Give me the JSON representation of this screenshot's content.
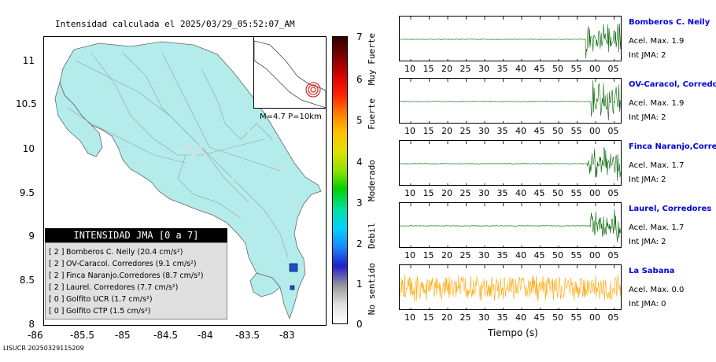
{
  "map": {
    "title": "Intensidad calculada el 2025/03/29_05:52:07_AM",
    "yticks": [
      "11",
      "10.5",
      "10",
      "9.5",
      "9",
      "8.5",
      "8"
    ],
    "xticks": [
      "-86",
      "-85.5",
      "-85",
      "-84.5",
      "-84",
      "-83.5",
      "-83"
    ],
    "inset_label": "M=4.7 P=10km",
    "land_color": "#b4ecec",
    "station_color": "#1a4fd0"
  },
  "legend": {
    "title": "INTENSIDAD JMA [0 a 7]",
    "rows": [
      {
        "level": "[ 2 ]",
        "text": "Bomberos C. Neily (20.4 cm/s²)"
      },
      {
        "level": "[ 2 ]",
        "text": "OV-Caracol. Corredores (9.1 cm/s²)"
      },
      {
        "level": "[ 2 ]",
        "text": "Finca Naranjo.Corredores (8.7 cm/s²)"
      },
      {
        "level": "[ 2 ]",
        "text": "Laurel. Corredores (7.7 cm/s²)"
      },
      {
        "level": "[ 0 ]",
        "text": "Golfito UCR (1.7 cm/s²)"
      },
      {
        "level": "[ 0 ]",
        "text": "Golfito CTP (1.5 cm/s²)"
      }
    ]
  },
  "colorbar": {
    "ticks": [
      "7",
      "6",
      "5",
      "4",
      "3",
      "2",
      "1",
      "0"
    ],
    "labels": [
      "Muy Fuerte",
      "Fuerte",
      "Moderado",
      "Debil",
      "No sentido"
    ]
  },
  "footer": "LISUCR 20250329115209",
  "traces": {
    "tick_labels": [
      "10",
      "15",
      "20",
      "25",
      "30",
      "35",
      "40",
      "45",
      "50",
      "55",
      "00",
      "05"
    ],
    "xlabel": "Tiempo (s)",
    "stations": [
      {
        "name": "Bomberos C. Neily",
        "acel": "Acel. Max. 1.9",
        "int": "Int JMA: 2",
        "color": "#006400"
      },
      {
        "name": "OV-Caracol, Corredores",
        "acel": "Acel. Max. 1.9",
        "int": "Int JMA: 2",
        "color": "#006400"
      },
      {
        "name": "Finca Naranjo,Corredores",
        "acel": "Acel. Max. 1.7",
        "int": "Int JMA: 2",
        "color": "#006400"
      },
      {
        "name": "Laurel, Corredores",
        "acel": "Acel. Max. 1.7",
        "int": "Int JMA: 2",
        "color": "#006400"
      },
      {
        "name": "La Sabana",
        "acel": "Acel. Max. 0.0",
        "int": "Int JMA: 0",
        "color": "#ffa500"
      }
    ]
  }
}
